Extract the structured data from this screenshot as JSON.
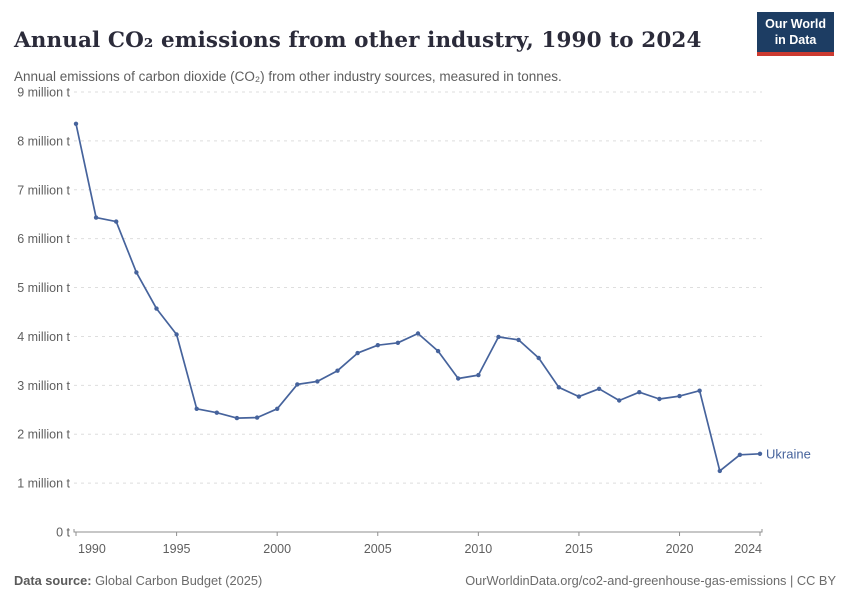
{
  "header": {
    "title": "Annual CO₂ emissions from other industry, 1990 to 2024",
    "subtitle": "Annual emissions of carbon dioxide (CO₂) from other industry sources, measured in tonnes.",
    "logo": {
      "line1": "Our World",
      "line2": "in Data",
      "bg_color": "#1d3d63",
      "accent_color": "#cc3a30"
    }
  },
  "chart_data": {
    "type": "line",
    "title": "Annual CO₂ emissions from other industry, 1990 to 2024",
    "subtitle": "Annual emissions of carbon dioxide (CO₂) from other industry sources, measured in tonnes.",
    "xlabel": "",
    "ylabel": "",
    "xlim": [
      1990,
      2024
    ],
    "ylim": [
      0,
      9
    ],
    "grid": "horizontal-dashed",
    "legend_position": "end-of-line-label",
    "x_ticks": [
      1990,
      1995,
      2000,
      2005,
      2010,
      2015,
      2020,
      2024
    ],
    "y_ticks": [
      {
        "value": 0,
        "label": "0 t"
      },
      {
        "value": 1,
        "label": "1 million t"
      },
      {
        "value": 2,
        "label": "2 million t"
      },
      {
        "value": 3,
        "label": "3 million t"
      },
      {
        "value": 4,
        "label": "4 million t"
      },
      {
        "value": 5,
        "label": "5 million t"
      },
      {
        "value": 6,
        "label": "6 million t"
      },
      {
        "value": 7,
        "label": "7 million t"
      },
      {
        "value": 8,
        "label": "8 million t"
      },
      {
        "value": 9,
        "label": "9 million t"
      }
    ],
    "series": [
      {
        "name": "Ukraine",
        "color": "#46639c",
        "unit": "million t",
        "x": [
          1990,
          1991,
          1992,
          1993,
          1994,
          1995,
          1996,
          1997,
          1998,
          1999,
          2000,
          2001,
          2002,
          2003,
          2004,
          2005,
          2006,
          2007,
          2008,
          2009,
          2010,
          2011,
          2012,
          2013,
          2014,
          2015,
          2016,
          2017,
          2018,
          2019,
          2020,
          2021,
          2022,
          2023,
          2024
        ],
        "values": [
          8.35,
          6.43,
          6.35,
          5.31,
          4.57,
          4.04,
          2.52,
          2.44,
          2.33,
          2.34,
          2.52,
          3.02,
          3.08,
          3.3,
          3.66,
          3.82,
          3.87,
          4.06,
          3.7,
          3.14,
          3.21,
          3.99,
          3.93,
          3.56,
          2.96,
          2.77,
          2.93,
          2.69,
          2.86,
          2.72,
          2.78,
          2.89,
          1.25,
          1.58,
          1.6
        ]
      }
    ]
  },
  "footer": {
    "source_label": "Data source:",
    "source_value": " Global Carbon Budget (2025)",
    "credit": "OurWorldinData.org/co2-and-greenhouse-gas-emissions | CC BY"
  }
}
